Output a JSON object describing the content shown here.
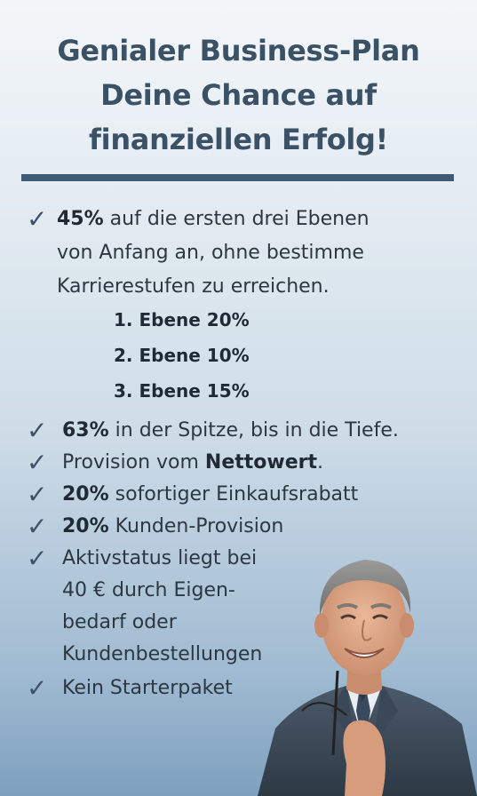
{
  "title": {
    "line1": "Genialer Business-Plan",
    "line2": "Deine Chance auf",
    "line3": "finanziellen Erfolg!"
  },
  "items": [
    {
      "check": "✓",
      "bold": "45%",
      "text": " auf die ersten drei Ebenen"
    },
    {
      "text": "von Anfang an, ohne bestimme"
    },
    {
      "text": "Karrierestufen zu erreichen."
    }
  ],
  "levels": [
    "1. Ebene 20%",
    "2. Ebene 10%",
    "3. Ebene 15%"
  ],
  "bullets": [
    {
      "check": "✓",
      "bold": "63%",
      "text": " in der Spitze, bis in die Tiefe."
    },
    {
      "check": "✓",
      "pre": "Provision vom ",
      "bold": "Nettowert",
      "post": "."
    },
    {
      "check": "✓",
      "bold": "20%",
      "text": " sofortiger Einkaufsrabatt"
    },
    {
      "check": "✓",
      "bold": "20%",
      "text": " Kunden-Provision"
    },
    {
      "check": "✓",
      "text": "Aktivstatus liegt bei"
    },
    {
      "text": "40 € durch Eigen-"
    },
    {
      "text": "bedarf oder"
    },
    {
      "text": "Kundenbestellungen"
    },
    {
      "check": "✓",
      "text": "Kein Starterpaket"
    }
  ],
  "colors": {
    "title": "#3a5166",
    "divider": "#3f5a73",
    "text": "#2c3742",
    "check": "#3d5267"
  },
  "icons": [
    "check-icon",
    "businessman-photo"
  ]
}
